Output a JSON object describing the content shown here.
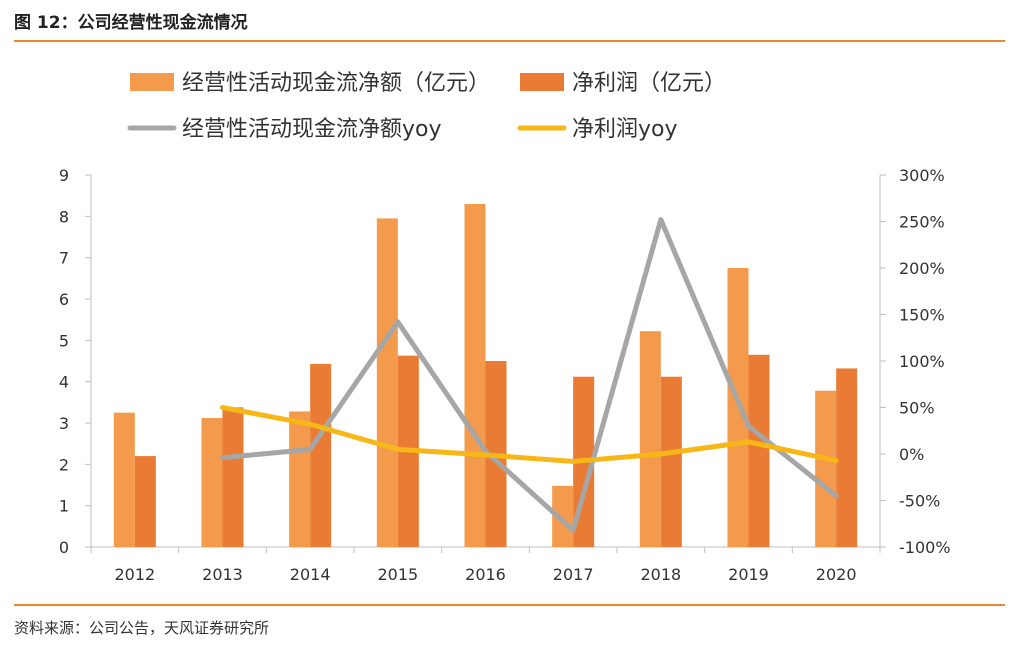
{
  "header": {
    "title": "图 12：公司经营性现金流情况"
  },
  "footer": {
    "source": "资料来源：公司公告，天风证券研究所"
  },
  "colors": {
    "rule": "#e8892f",
    "bar_ocf": "#f49a4c",
    "bar_np": "#ea7b34",
    "line_ocf_yoy": "#a6a6a6",
    "line_np_yoy": "#f7b716"
  },
  "chart_data": {
    "type": "bar",
    "categories": [
      "2012",
      "2013",
      "2014",
      "2015",
      "2016",
      "2017",
      "2018",
      "2019",
      "2020"
    ],
    "series": [
      {
        "name": "经营性活动现金流净额（亿元）",
        "kind": "bar",
        "axis": "left",
        "values": [
          3.25,
          3.12,
          3.28,
          7.95,
          8.3,
          1.48,
          5.22,
          6.75,
          3.78
        ]
      },
      {
        "name": "净利润（亿元）",
        "kind": "bar",
        "axis": "left",
        "values": [
          2.2,
          3.38,
          4.43,
          4.63,
          4.5,
          4.12,
          4.12,
          4.65,
          4.32
        ]
      },
      {
        "name": "经营性活动现金流净额yoy",
        "kind": "line",
        "axis": "right",
        "values": [
          null,
          -4,
          5,
          142,
          3,
          -82,
          252,
          30,
          -45
        ]
      },
      {
        "name": "净利润yoy",
        "kind": "line",
        "axis": "right",
        "values": [
          null,
          50,
          32,
          5,
          -1,
          -8,
          0,
          13,
          -7
        ]
      }
    ],
    "y_left": {
      "min": 0,
      "max": 9,
      "ticks": [
        "0",
        "1",
        "2",
        "3",
        "4",
        "5",
        "6",
        "7",
        "8",
        "9"
      ]
    },
    "y_right": {
      "min": -100,
      "max": 300,
      "ticks": [
        "-100%",
        "-50%",
        "0%",
        "50%",
        "100%",
        "150%",
        "200%",
        "250%",
        "300%"
      ]
    },
    "legend_position": "top"
  }
}
